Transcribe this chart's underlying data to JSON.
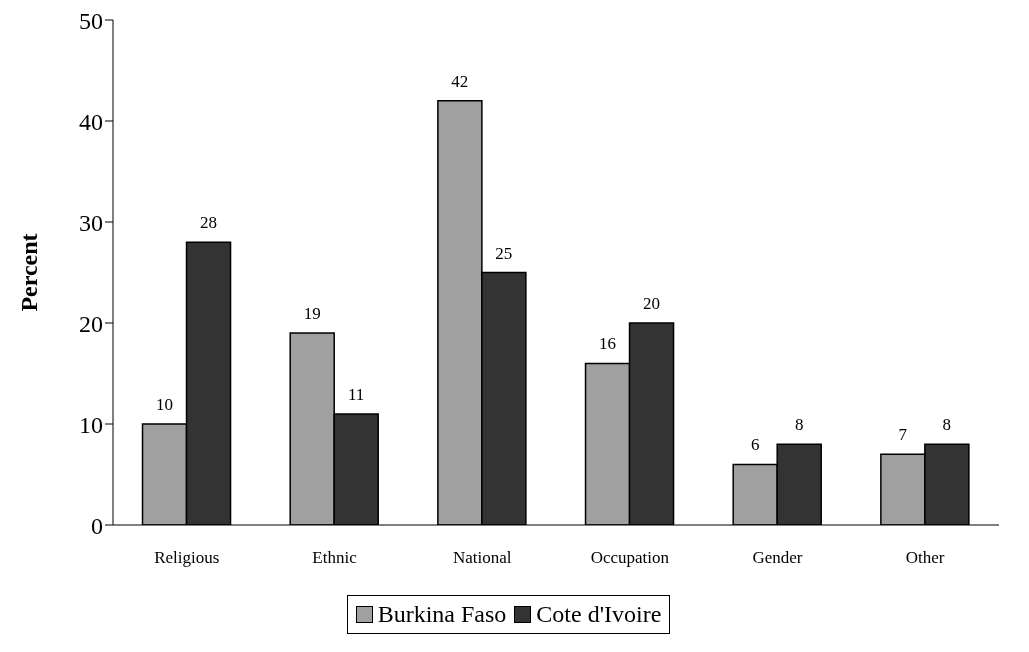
{
  "chart_data": {
    "type": "bar",
    "ylabel": "Percent",
    "categories": [
      "Religious",
      "Ethnic",
      "National",
      "Occupation",
      "Gender",
      "Other"
    ],
    "series": [
      {
        "name": "Burkina Faso",
        "color": "#a0a0a0",
        "values": [
          10,
          19,
          42,
          16,
          6,
          7
        ]
      },
      {
        "name": "Cote d'Ivoire",
        "color": "#333333",
        "values": [
          28,
          11,
          25,
          20,
          8,
          8
        ]
      }
    ],
    "ylim": [
      0,
      50
    ],
    "yticks": [
      0,
      10,
      20,
      30,
      40,
      50
    ],
    "grid": false,
    "legend": "bottom",
    "data_labels": true
  }
}
